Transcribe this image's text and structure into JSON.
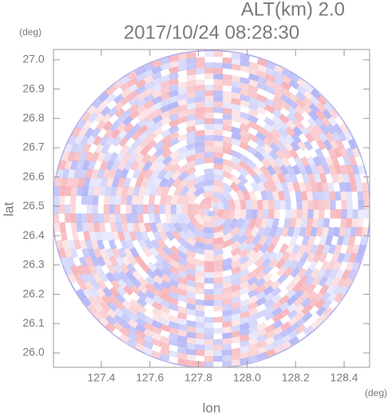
{
  "chart_data": {
    "type": "radar-ppi",
    "altitude_label": "ALT(km) 2.0",
    "title": "2017/10/24 08:28:30",
    "x_label": "lon",
    "y_label": "lat",
    "x_unit": "(deg)",
    "y_unit": "(deg)",
    "xlim": [
      127.203,
      128.505
    ],
    "ylim": [
      25.951,
      27.035
    ],
    "xticks": [
      127.4,
      127.6,
      127.8,
      {
        "value": 128.0,
        "label": "128.0"
      },
      128.2,
      128.4
    ],
    "yticks": [
      {
        "value": 26.0,
        "label": "26.0"
      },
      26.1,
      26.2,
      26.3,
      26.4,
      26.5,
      26.6,
      26.7,
      26.8,
      26.9,
      {
        "value": 27.0,
        "label": "27.0"
      }
    ],
    "center": [
      127.853,
      26.49
    ]
  }
}
